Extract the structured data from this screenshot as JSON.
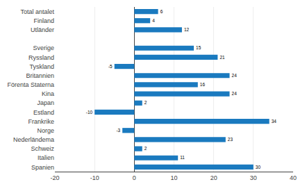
{
  "chart_data": {
    "type": "bar",
    "orientation": "horizontal",
    "categories": [
      "Total antalet",
      "Finland",
      "Utländer",
      null,
      "Sverige",
      "Ryssland",
      "Tyskland",
      "Britannien",
      "Förenta Staterna",
      "Kina",
      "Japan",
      "Estland",
      "Frankrike",
      "Norge",
      "Nederländema",
      "Schweiz",
      "Italien",
      "Spanien"
    ],
    "values": [
      6,
      4,
      12,
      null,
      15,
      21,
      -5,
      24,
      16,
      24,
      2,
      -10,
      34,
      -3,
      23,
      2,
      11,
      30
    ],
    "color": "#1a7abf",
    "xlim": [
      -20,
      40
    ],
    "xticks": [
      -20,
      -10,
      0,
      10,
      20,
      30,
      40
    ],
    "grid": true,
    "data_labels": true
  }
}
